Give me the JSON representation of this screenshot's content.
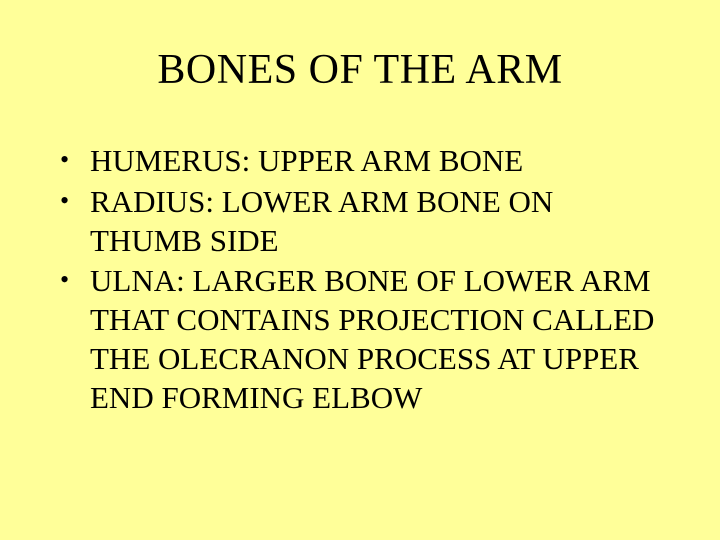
{
  "slide": {
    "background_color": "#ffff99",
    "text_color": "#000000",
    "font_family": "Times New Roman",
    "title": {
      "text": "BONES OF THE ARM",
      "fontsize": 42,
      "align": "center"
    },
    "bullets": [
      {
        "text": "HUMERUS:  UPPER ARM BONE"
      },
      {
        "text": "RADIUS:  LOWER ARM BONE ON THUMB SIDE"
      },
      {
        "text": "ULNA:  LARGER BONE OF LOWER ARM THAT CONTAINS PROJECTION CALLED THE OLECRANON PROCESS AT UPPER END FORMING ELBOW"
      }
    ],
    "body_fontsize": 31,
    "bullet_marker": "•"
  }
}
